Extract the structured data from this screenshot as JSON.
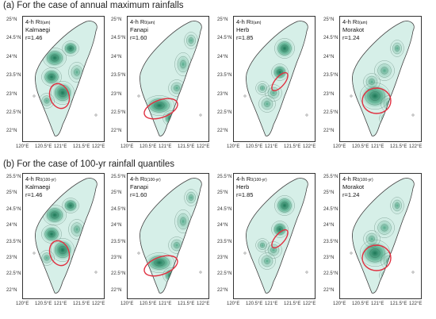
{
  "section_a": {
    "title": "(a) For the case of annual maximum rainfalls"
  },
  "section_b": {
    "title": "(b) For the case of 100-yr rainfall quantiles"
  },
  "axes_top": {
    "y_labels": [
      "25°N",
      "24.5°N",
      "24°N",
      "23.5°N",
      "23°N",
      "22.5°N",
      "22°N"
    ]
  },
  "axes_bottom": {
    "y_labels": [
      "25.5°N",
      "25°N",
      "24.5°N",
      "24°N",
      "23.5°N",
      "23°N",
      "22.5°N",
      "22°N"
    ]
  },
  "x_labels": [
    "120°E",
    "120.5°E",
    "121°E",
    "121.5°E",
    "122°E"
  ],
  "panels_top": [
    {
      "name": "kalmaegi",
      "var": "4-h  R",
      "sub": "0(am)",
      "typhoon": "Kalmaegi",
      "r": "r=1.46"
    },
    {
      "name": "fanapi",
      "var": "4-h  R",
      "sub": "0(am)",
      "typhoon": "Fanapi",
      "r": "r=1.60"
    },
    {
      "name": "herb",
      "var": "4-h  R",
      "sub": "0(am)",
      "typhoon": "Herb",
      "r": "r=1.85"
    },
    {
      "name": "morakot",
      "var": "4-h  R",
      "sub": "0(am)",
      "typhoon": "Morakot",
      "r": "r=1.24"
    }
  ],
  "panels_bottom": [
    {
      "name": "kalmaegi",
      "var": "4-h  R",
      "sub": "0(100-yr)",
      "typhoon": "Kalmaegi",
      "r": "r=1.46"
    },
    {
      "name": "fanapi",
      "var": "4-h  R",
      "sub": "0(100-yr)",
      "typhoon": "Fanapi",
      "r": "r=1.60"
    },
    {
      "name": "herb",
      "var": "4-h  R",
      "sub": "0(100-yr)",
      "typhoon": "Herb",
      "r": "r=1.85"
    },
    {
      "name": "morakot",
      "var": "4-h  R",
      "sub": "0(100-yr)",
      "typhoon": "Morakot",
      "r": "r=1.24"
    }
  ],
  "colors": {
    "fill_light": "#d6efe8",
    "fill_mid": "#74c8ab",
    "fill_dark": "#1d8a62",
    "ellipse": "#e03040"
  }
}
